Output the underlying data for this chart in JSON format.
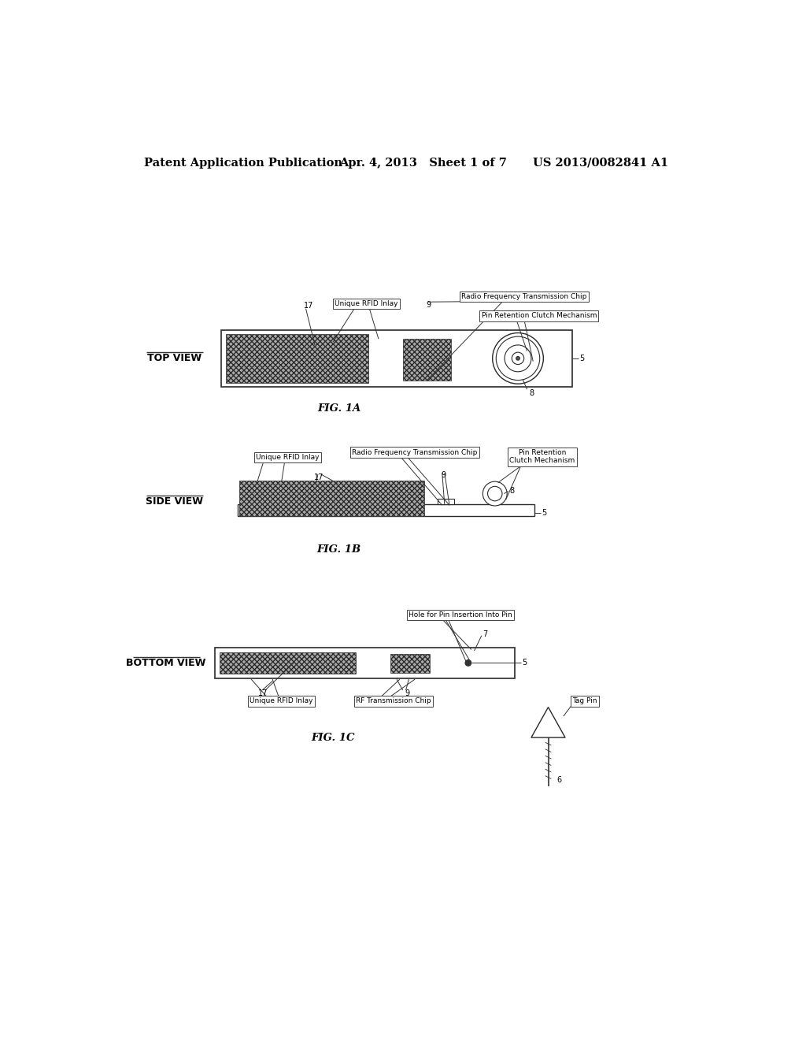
{
  "bg_color": "#ffffff",
  "header_text": "Patent Application Publication",
  "header_date": "Apr. 4, 2013   Sheet 1 of 7",
  "header_patent": "US 2013/0082841 A1",
  "fig1a_label": "FIG. 1A",
  "fig1b_label": "FIG. 1B",
  "fig1c_label": "FIG. 1C",
  "hatch_color": "#666666",
  "hatch_pattern": "////"
}
